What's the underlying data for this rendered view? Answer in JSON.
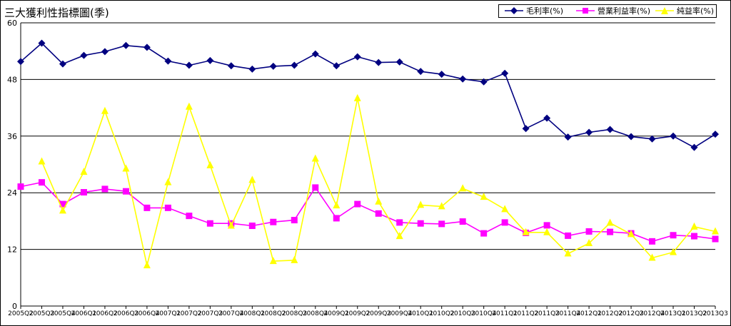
{
  "chart_data": {
    "type": "line",
    "title": "三大獲利性指標圖(季)",
    "categories": [
      "2005Q2",
      "2005Q3",
      "2005Q4",
      "2006Q1",
      "2006Q2",
      "2006Q3",
      "2006Q4",
      "2007Q1",
      "2007Q2",
      "2007Q3",
      "2007Q4",
      "2008Q1",
      "2008Q2",
      "2008Q3",
      "2008Q4",
      "2009Q1",
      "2009Q2",
      "2009Q3",
      "2009Q4",
      "2010Q1",
      "2010Q2",
      "2010Q3",
      "2010Q4",
      "2011Q1",
      "2011Q2",
      "2011Q3",
      "2011Q4",
      "2012Q1",
      "2012Q2",
      "2012Q3",
      "2012Q4",
      "2013Q1",
      "2013Q2",
      "2013Q3"
    ],
    "yticks": [
      0,
      12,
      24,
      36,
      48,
      60
    ],
    "ylim": [
      0,
      60
    ],
    "grid": true,
    "legend_position": "top-right",
    "series": [
      {
        "name": "毛利率(%)",
        "color": "#000080",
        "marker": "diamond",
        "values": [
          51.8,
          55.7,
          51.3,
          53.1,
          53.9,
          55.2,
          54.8,
          51.9,
          51.0,
          52.0,
          50.9,
          50.2,
          50.8,
          51.0,
          53.4,
          50.9,
          52.8,
          51.6,
          51.7,
          49.7,
          49.1,
          48.1,
          47.5,
          49.3,
          37.6,
          39.8,
          35.8,
          36.8,
          37.4,
          35.9,
          35.4,
          36.0,
          33.6,
          36.4
        ]
      },
      {
        "name": "營業利益率(%)",
        "color": "#FF00FF",
        "marker": "square",
        "values": [
          25.3,
          26.2,
          21.6,
          24.1,
          24.8,
          24.3,
          20.8,
          20.8,
          19.1,
          17.5,
          17.5,
          17.0,
          17.8,
          18.2,
          25.1,
          18.6,
          21.6,
          19.6,
          17.7,
          17.5,
          17.4,
          17.9,
          15.4,
          17.7,
          15.5,
          17.1,
          14.9,
          15.8,
          15.7,
          15.4,
          13.7,
          15.0,
          14.8,
          14.2
        ]
      },
      {
        "name": "純益率(%)",
        "color": "#FFFF00",
        "marker": "triangle",
        "values": [
          null,
          30.6,
          20.2,
          28.4,
          41.3,
          29.1,
          8.6,
          26.2,
          42.2,
          29.8,
          17.0,
          26.7,
          9.5,
          9.7,
          31.2,
          21.3,
          44.0,
          22.1,
          14.8,
          21.4,
          21.1,
          24.9,
          23.1,
          20.5,
          15.6,
          15.6,
          11.1,
          13.3,
          17.6,
          15.2,
          10.2,
          11.4,
          16.8,
          15.8
        ]
      }
    ]
  }
}
